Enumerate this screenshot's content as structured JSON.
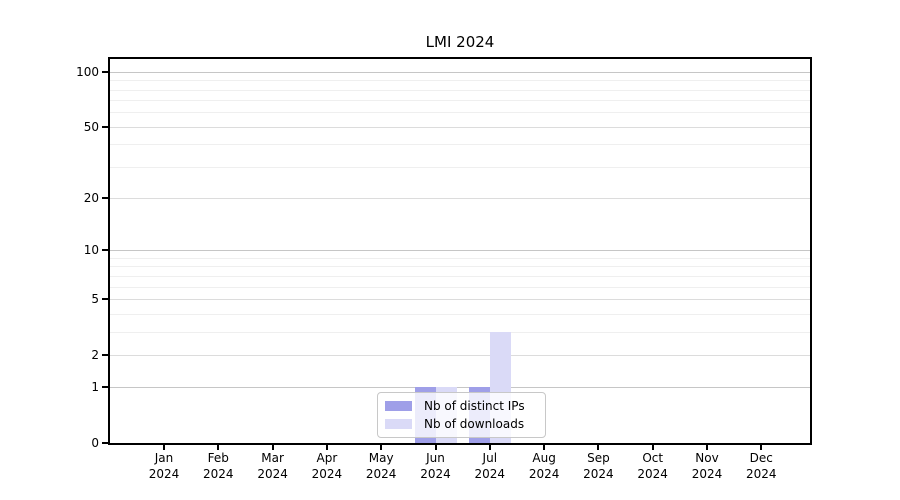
{
  "title": "LMI 2024",
  "legend": {
    "items": [
      {
        "label": "Nb of distinct IPs",
        "color": "#9f9fe8"
      },
      {
        "label": "Nb of downloads",
        "color": "#dadaf7"
      }
    ]
  },
  "chart_data": {
    "type": "bar",
    "title": "LMI 2024",
    "categories": [
      "Jan 2024",
      "Feb 2024",
      "Mar 2024",
      "Apr 2024",
      "May 2024",
      "Jun 2024",
      "Jul 2024",
      "Aug 2024",
      "Sep 2024",
      "Oct 2024",
      "Nov 2024",
      "Dec 2024"
    ],
    "series": [
      {
        "name": "Nb of distinct IPs",
        "color": "#9f9fe8",
        "values": [
          0,
          0,
          0,
          0,
          0,
          1,
          1,
          0,
          0,
          0,
          0,
          0
        ]
      },
      {
        "name": "Nb of downloads",
        "color": "#dadaf7",
        "values": [
          0,
          0,
          0,
          0,
          0,
          1,
          3,
          0,
          0,
          0,
          0,
          0
        ]
      }
    ],
    "xlabel": "",
    "ylabel": "",
    "yscale": "log1p",
    "ylim": [
      0,
      117.5
    ],
    "y_major_ticks": [
      0,
      1,
      2,
      5,
      10,
      20,
      50,
      100
    ],
    "y_minor_gridlines": [
      3,
      4,
      6,
      7,
      8,
      9,
      30,
      40,
      60,
      70,
      80,
      90
    ],
    "grid": true,
    "legend_position": "lower center",
    "colors": {
      "decade_grid": "#c6c6c6",
      "major_grid": "#dcdcdc",
      "minor_grid": "#efefef",
      "spine": "#000000",
      "text": "#000000",
      "background": "#ffffff"
    }
  }
}
